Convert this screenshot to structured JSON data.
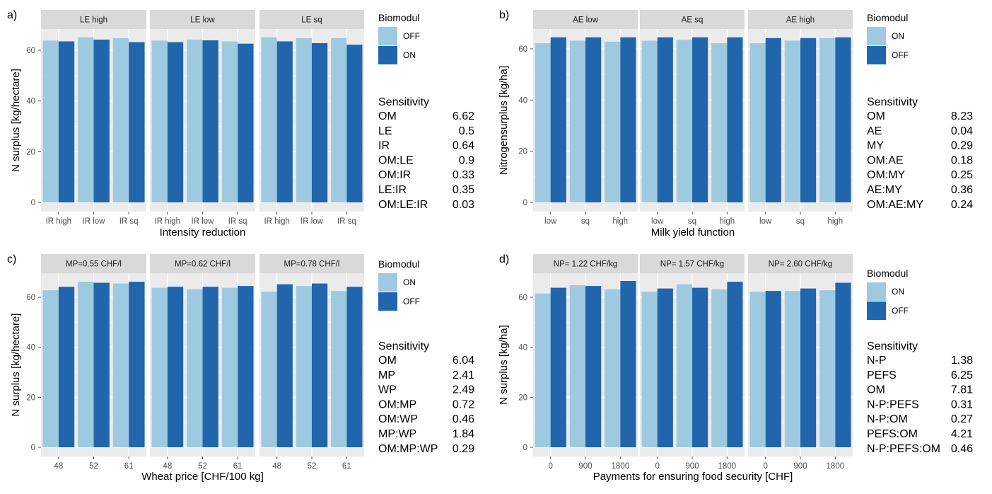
{
  "colors": {
    "light": "#9ecae1",
    "dark": "#2166ac",
    "panel_bg": "#ebebeb",
    "strip_bg": "#d9d9d9",
    "grid": "#ffffff"
  },
  "chart_data": [
    {
      "label": "a)",
      "type": "bar",
      "ylabel": "N surplus [kg/hectare]",
      "xlabel": "Intensity reduction",
      "ylim": [
        0,
        70
      ],
      "yticks": [
        0,
        20,
        40,
        60
      ],
      "categories": [
        "IR high",
        "IR low",
        "IR sq"
      ],
      "legend": {
        "title": "Biomodul",
        "entries": [
          {
            "label": "OFF",
            "color": "#9ecae1"
          },
          {
            "label": "ON",
            "color": "#2166ac"
          }
        ]
      },
      "facets": [
        {
          "strip": "LE high",
          "series": [
            {
              "values": [
                63.8,
                65.1,
                64.8
              ]
            },
            {
              "values": [
                63.5,
                64.2,
                63.2
              ]
            }
          ]
        },
        {
          "strip": "LE low",
          "series": [
            {
              "values": [
                63.8,
                64.2,
                63.5
              ]
            },
            {
              "values": [
                63.2,
                63.9,
                62.6
              ]
            }
          ]
        },
        {
          "strip": "LE sq",
          "series": [
            {
              "values": [
                65.1,
                64.8,
                64.8
              ]
            },
            {
              "values": [
                63.5,
                62.8,
                62.2
              ]
            }
          ]
        }
      ],
      "sensitivity": {
        "title": "Sensitivity",
        "rows": [
          [
            "OM",
            "6.62"
          ],
          [
            "LE",
            "0.5"
          ],
          [
            "IR",
            "0.64"
          ],
          [
            "OM:LE",
            "0.9"
          ],
          [
            "OM:IR",
            "0.33"
          ],
          [
            "LE:IR",
            "0.35"
          ],
          [
            "OM:LE:IR",
            "0.03"
          ]
        ]
      }
    },
    {
      "label": "b)",
      "type": "bar",
      "ylabel": "Nitrogensurplus [kg/ha]",
      "xlabel": "Milk yield function",
      "ylim": [
        0,
        70
      ],
      "yticks": [
        0,
        20,
        40,
        60
      ],
      "categories": [
        "low",
        "sq",
        "high"
      ],
      "legend": {
        "title": "Biomodul",
        "entries": [
          {
            "label": "ON",
            "color": "#9ecae1"
          },
          {
            "label": "OFF",
            "color": "#2166ac"
          }
        ]
      },
      "facets": [
        {
          "strip": "AE low",
          "series": [
            {
              "values": [
                62.2,
                63.2,
                62.8
              ]
            },
            {
              "values": [
                64.5,
                64.5,
                64.5
              ]
            }
          ]
        },
        {
          "strip": "AE sq",
          "series": [
            {
              "values": [
                63.2,
                63.5,
                62.2
              ]
            },
            {
              "values": [
                64.5,
                64.5,
                64.5
              ]
            }
          ]
        },
        {
          "strip": "AE high",
          "series": [
            {
              "values": [
                62.2,
                63.2,
                64.2
              ]
            },
            {
              "values": [
                64.2,
                64.2,
                64.5
              ]
            }
          ]
        }
      ],
      "sensitivity": {
        "title": "Sensitivity",
        "rows": [
          [
            "OM",
            "8.23"
          ],
          [
            "AE",
            "0.04"
          ],
          [
            "MY",
            "0.29"
          ],
          [
            "OM:AE",
            "0.18"
          ],
          [
            "OM:MY",
            "0.25"
          ],
          [
            "AE:MY",
            "0.36"
          ],
          [
            "OM:AE:MY",
            "0.24"
          ]
        ]
      }
    },
    {
      "label": "c)",
      "type": "bar",
      "ylabel": "N surplus [kg/hectare]",
      "xlabel": "Wheat price [CHF/100 kg]",
      "ylim": [
        0,
        70
      ],
      "yticks": [
        0,
        20,
        40,
        60
      ],
      "categories": [
        "48",
        "52",
        "61"
      ],
      "legend": {
        "title": "Biomodul",
        "entries": [
          {
            "label": "ON",
            "color": "#9ecae1"
          },
          {
            "label": "OFF",
            "color": "#2166ac"
          }
        ]
      },
      "facets": [
        {
          "strip": "MP=0.55 CHF/l",
          "series": [
            {
              "values": [
                62.8,
                66.2,
                65.5
              ]
            },
            {
              "values": [
                64.2,
                65.8,
                66.2
              ]
            }
          ]
        },
        {
          "strip": "MP=0.62 CHF/l",
          "series": [
            {
              "values": [
                63.8,
                63.2,
                63.8
              ]
            },
            {
              "values": [
                64.2,
                64.2,
                64.5
              ]
            }
          ]
        },
        {
          "strip": "MP=0.78 CHF/l",
          "series": [
            {
              "values": [
                62.2,
                64.5,
                62.5
              ]
            },
            {
              "values": [
                65.2,
                65.5,
                64.2
              ]
            }
          ]
        }
      ],
      "sensitivity": {
        "title": "Sensitivity",
        "rows": [
          [
            "OM",
            "6.04"
          ],
          [
            "MP",
            "2.41"
          ],
          [
            "WP",
            "2.49"
          ],
          [
            "OM:MP",
            "0.72"
          ],
          [
            "OM:WP",
            "0.46"
          ],
          [
            "MP:WP",
            "1.84"
          ],
          [
            "OM:MP:WP",
            "0.29"
          ]
        ]
      }
    },
    {
      "label": "d)",
      "type": "bar",
      "ylabel": "N surplus [kg/ha]",
      "xlabel": "Payments for ensuring food security [CHF]",
      "ylim": [
        0,
        70
      ],
      "yticks": [
        0,
        20,
        40,
        60
      ],
      "categories": [
        "0",
        "900",
        "1800"
      ],
      "legend": {
        "title": "Biomodul",
        "entries": [
          {
            "label": "ON",
            "color": "#9ecae1"
          },
          {
            "label": "OFF",
            "color": "#2166ac"
          }
        ]
      },
      "facets": [
        {
          "strip": "NP= 1.22 CHF/kg",
          "series": [
            {
              "values": [
                61.5,
                64.8,
                63.2
              ]
            },
            {
              "values": [
                63.8,
                64.5,
                66.5
              ]
            }
          ]
        },
        {
          "strip": "NP= 1.57 CHF/kg",
          "series": [
            {
              "values": [
                62.2,
                65.2,
                63.2
              ]
            },
            {
              "values": [
                63.5,
                63.8,
                66.2
              ]
            }
          ]
        },
        {
          "strip": "NP= 2.60 CHF/kg",
          "series": [
            {
              "values": [
                62.2,
                62.5,
                62.8
              ]
            },
            {
              "values": [
                62.5,
                63.5,
                65.8
              ]
            }
          ]
        }
      ],
      "sensitivity": {
        "title": "Sensitivity",
        "rows": [
          [
            "N-P",
            "1.38"
          ],
          [
            "PEFS",
            "6.25"
          ],
          [
            "OM",
            "7.81"
          ],
          [
            "N-P:PEFS",
            "0.31"
          ],
          [
            "N-P:OM",
            "0.27"
          ],
          [
            "PEFS:OM",
            "4.21"
          ],
          [
            "N-P:PEFS:OM",
            "0.46"
          ]
        ]
      }
    }
  ]
}
